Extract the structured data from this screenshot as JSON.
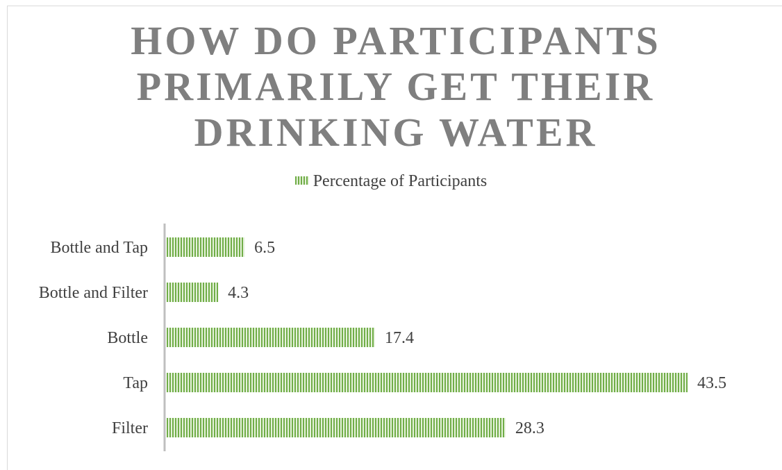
{
  "chart_data": {
    "type": "bar",
    "orientation": "horizontal",
    "title": "HOW DO PARTICIPANTS PRIMARILY GET THEIR DRINKING WATER",
    "categories": [
      "Bottle and Tap",
      "Bottle and Filter",
      "Bottle",
      "Tap",
      "Filter"
    ],
    "series": [
      {
        "name": "Percentage of Participants",
        "values": [
          6.5,
          4.3,
          17.4,
          43.5,
          28.3
        ],
        "data_labels": [
          "6.5",
          "4.3",
          "17.4",
          "43.5",
          "28.3"
        ]
      }
    ],
    "xlim": [
      0,
      45
    ],
    "grid": false,
    "legend_position": "top",
    "bar_pattern": "vertical-stripes",
    "colors": {
      "bar": "#70ad47",
      "bar_stripe_gap": "#e6f2dc",
      "title": "#7f7f7f",
      "axis": "#bfbfbf",
      "text": "#404040"
    }
  }
}
